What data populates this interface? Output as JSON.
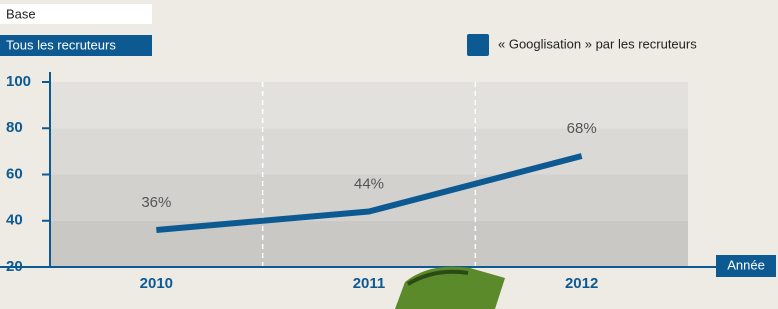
{
  "chart_data": {
    "type": "line",
    "base_label": "Base",
    "base_value": "Tous les recruteurs",
    "x_label": "Année",
    "categories": [
      "2010",
      "2011",
      "2012"
    ],
    "series": [
      {
        "name": "« Googlisation » par les recruteurs",
        "color": "#0d5a93",
        "values": [
          36,
          44,
          68
        ],
        "value_labels": [
          "36%",
          "44%",
          "68%"
        ]
      }
    ],
    "ylim": [
      20,
      100
    ],
    "yticks": [
      20,
      40,
      60,
      80,
      100
    ],
    "legend": "top-right"
  }
}
